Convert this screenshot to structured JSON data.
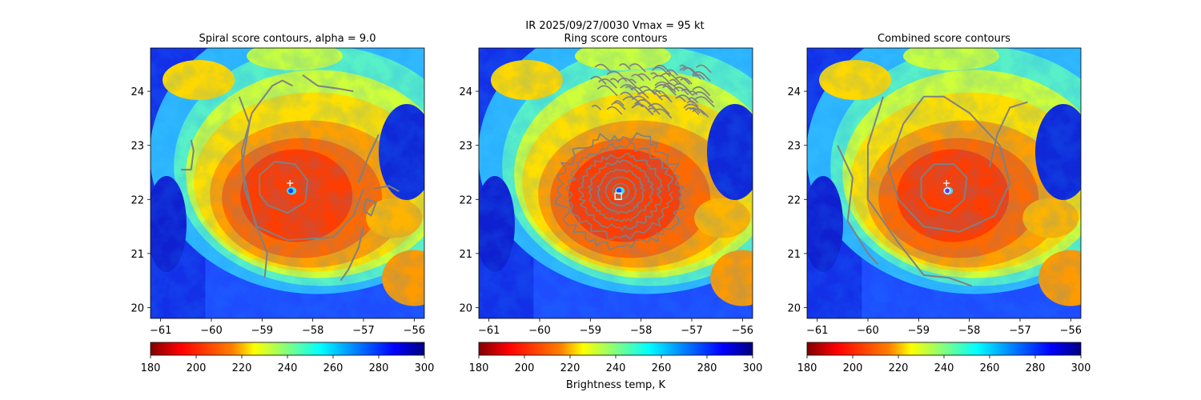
{
  "figure": {
    "suptitle_line1": "IR  2025/09/27/0030    Vmax = 95 kt",
    "colorbar_label": "Brightness temp, K"
  },
  "colors": {
    "contour": "#808080",
    "marker": "#ffffff",
    "center_dot": "#7b2fd6",
    "cmap_stops": [
      "#800000",
      "#ff0000",
      "#ff8000",
      "#ffff00",
      "#80ff80",
      "#00ffff",
      "#0080ff",
      "#0000ff",
      "#000080"
    ]
  },
  "chart_data": [
    {
      "type": "heatmap",
      "title": "Spiral score contours, alpha =  9.0",
      "xlim": [
        -61.2,
        -55.8
      ],
      "ylim": [
        19.8,
        24.8
      ],
      "xticks": [
        -61,
        -60,
        -59,
        -58,
        -57,
        -56
      ],
      "yticks": [
        20,
        21,
        22,
        23,
        24
      ],
      "colorbar": {
        "range": [
          180,
          300
        ],
        "ticks": [
          180,
          200,
          220,
          240,
          260,
          280,
          300
        ]
      },
      "storm_center": {
        "lon": -58.45,
        "lat": 22.1
      },
      "cross_marker": {
        "lon": -58.45,
        "lat": 22.3
      },
      "contours": [
        [
          [
            -58.9,
            21.9
          ],
          [
            -58.5,
            21.75
          ],
          [
            -58.15,
            21.95
          ],
          [
            -58.1,
            22.35
          ],
          [
            -58.35,
            22.65
          ],
          [
            -58.75,
            22.7
          ],
          [
            -59.05,
            22.45
          ],
          [
            -59.05,
            22.1
          ],
          [
            -58.9,
            21.9
          ]
        ],
        [
          [
            -59.4,
            22.9
          ],
          [
            -59.2,
            23.6
          ],
          [
            -58.8,
            24.1
          ],
          [
            -58.6,
            24.2
          ],
          [
            -58.4,
            24.1
          ]
        ],
        [
          [
            -59.4,
            22.9
          ],
          [
            -59.35,
            22.2
          ],
          [
            -59.1,
            21.5
          ],
          [
            -58.5,
            21.25
          ],
          [
            -57.6,
            21.3
          ],
          [
            -57.2,
            21.7
          ],
          [
            -57.0,
            22.2
          ]
        ],
        [
          [
            -59.45,
            23.9
          ],
          [
            -59.25,
            23.4
          ],
          [
            -59.4,
            22.6
          ],
          [
            -59.15,
            21.6
          ],
          [
            -58.9,
            21.0
          ],
          [
            -58.95,
            20.55
          ]
        ],
        [
          [
            -58.2,
            24.3
          ],
          [
            -57.9,
            24.1
          ],
          [
            -57.5,
            24.05
          ],
          [
            -57.2,
            24.0
          ]
        ],
        [
          [
            -60.4,
            23.1
          ],
          [
            -60.35,
            22.9
          ],
          [
            -60.4,
            22.55
          ],
          [
            -60.6,
            22.55
          ]
        ],
        [
          [
            -56.8,
            22.2
          ],
          [
            -56.5,
            22.25
          ],
          [
            -56.3,
            22.15
          ]
        ],
        [
          [
            -57.0,
            21.5
          ],
          [
            -57.1,
            21.1
          ],
          [
            -57.3,
            20.7
          ],
          [
            -57.45,
            20.5
          ]
        ],
        [
          [
            -57.1,
            22.3
          ],
          [
            -56.9,
            22.8
          ],
          [
            -56.7,
            23.2
          ]
        ],
        [
          [
            -57.0,
            21.8
          ],
          [
            -56.85,
            21.7
          ],
          [
            -56.75,
            21.95
          ],
          [
            -56.95,
            22.0
          ],
          [
            -57.0,
            21.8
          ]
        ]
      ]
    },
    {
      "type": "heatmap",
      "title": "Ring score contours",
      "xlim": [
        -61.2,
        -55.8
      ],
      "ylim": [
        19.8,
        24.8
      ],
      "xticks": [
        -61,
        -60,
        -59,
        -58,
        -57,
        -56
      ],
      "yticks": [
        20,
        21,
        22,
        23,
        24
      ],
      "colorbar": {
        "range": [
          180,
          300
        ],
        "ticks": [
          180,
          200,
          220,
          240,
          260,
          280,
          300
        ]
      },
      "storm_center": {
        "lon": -58.45,
        "lat": 22.1
      },
      "square_marker": {
        "lon": -58.45,
        "lat": 22.06
      },
      "ring_center": {
        "lon": -58.4,
        "lat": 22.15
      },
      "ring_radii_deg": [
        0.15,
        0.28,
        0.42,
        0.58,
        0.75,
        0.95,
        1.15
      ],
      "noise_region": {
        "lon": [
          -59.0,
          -56.9
        ],
        "lat": [
          23.6,
          24.5
        ]
      }
    },
    {
      "type": "heatmap",
      "title": "Combined score contours",
      "xlim": [
        -61.2,
        -55.8
      ],
      "ylim": [
        19.8,
        24.8
      ],
      "xticks": [
        -61,
        -60,
        -59,
        -58,
        -57,
        -56
      ],
      "yticks": [
        20,
        21,
        22,
        23,
        24
      ],
      "colorbar": {
        "range": [
          180,
          300
        ],
        "ticks": [
          180,
          200,
          220,
          240,
          260,
          280,
          300
        ]
      },
      "storm_center": {
        "lon": -58.45,
        "lat": 22.1
      },
      "cross_marker": {
        "lon": -58.45,
        "lat": 22.3
      },
      "contours": [
        [
          [
            -58.8,
            21.85
          ],
          [
            -58.4,
            21.75
          ],
          [
            -58.1,
            22.0
          ],
          [
            -58.05,
            22.4
          ],
          [
            -58.3,
            22.65
          ],
          [
            -58.7,
            22.65
          ],
          [
            -58.95,
            22.4
          ],
          [
            -58.95,
            22.05
          ],
          [
            -58.8,
            21.85
          ]
        ],
        [
          [
            -59.6,
            22.6
          ],
          [
            -59.3,
            23.4
          ],
          [
            -58.9,
            23.9
          ],
          [
            -58.5,
            23.9
          ],
          [
            -58.0,
            23.6
          ],
          [
            -57.4,
            23.0
          ],
          [
            -57.2,
            22.3
          ],
          [
            -57.5,
            21.7
          ],
          [
            -58.2,
            21.4
          ],
          [
            -58.9,
            21.5
          ],
          [
            -59.4,
            22.0
          ],
          [
            -59.6,
            22.6
          ]
        ],
        [
          [
            -60.6,
            23.0
          ],
          [
            -60.3,
            22.4
          ],
          [
            -60.4,
            21.6
          ],
          [
            -60.0,
            21.0
          ],
          [
            -59.8,
            20.8
          ]
        ],
        [
          [
            -59.7,
            23.9
          ],
          [
            -60.0,
            23.0
          ],
          [
            -60.0,
            22.0
          ],
          [
            -59.4,
            21.2
          ],
          [
            -58.9,
            20.6
          ],
          [
            -58.4,
            20.55
          ],
          [
            -57.95,
            20.4
          ]
        ],
        [
          [
            -57.6,
            22.6
          ],
          [
            -57.45,
            23.2
          ],
          [
            -57.2,
            23.7
          ],
          [
            -56.85,
            23.8
          ]
        ]
      ]
    }
  ]
}
